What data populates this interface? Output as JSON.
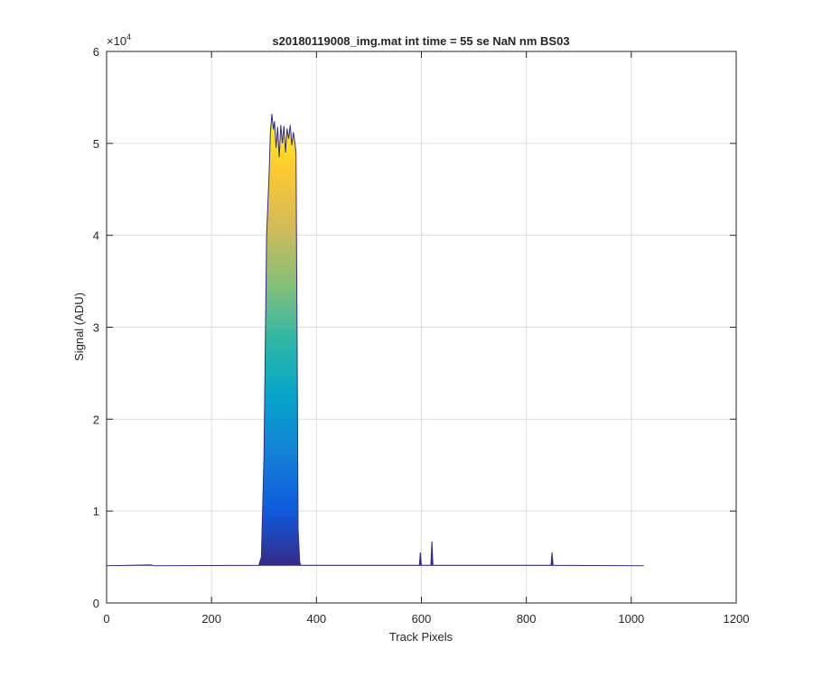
{
  "chart_data": {
    "type": "area",
    "title": "s20180119008_img.mat int time = 55 se  NaN nm BS03",
    "xlabel": "Track Pixels",
    "ylabel": "Signal (ADU)",
    "xlim": [
      0,
      1200
    ],
    "ylim": [
      0,
      60000
    ],
    "xticks": [
      0,
      200,
      400,
      600,
      800,
      1000,
      1200
    ],
    "yticks": [
      0,
      1,
      2,
      3,
      4,
      5,
      6
    ],
    "y_exponent_label": "×10",
    "y_exponent_power": "4",
    "grid": true,
    "colormap": "parula",
    "colormap_stops": [
      "#352a87",
      "#0f5cdd",
      "#1481d6",
      "#06a4ca",
      "#2eb7a4",
      "#87bf77",
      "#d1bb59",
      "#fec832",
      "#f9fb0e"
    ],
    "baseline": 4050,
    "x": [
      0,
      85,
      90,
      290,
      295,
      300,
      305,
      310,
      312,
      315,
      318,
      320,
      323,
      326,
      329,
      332,
      335,
      338,
      341,
      344,
      347,
      350,
      353,
      356,
      359,
      361,
      363,
      365,
      368,
      370,
      596,
      598,
      600,
      618,
      620,
      622,
      847,
      849,
      851,
      1024
    ],
    "y": [
      4050,
      4150,
      4050,
      4100,
      5000,
      16000,
      40000,
      47000,
      51000,
      53200,
      51500,
      52400,
      49500,
      51800,
      48500,
      52000,
      50000,
      51900,
      49000,
      51600,
      50500,
      52000,
      49800,
      51200,
      50000,
      49000,
      30000,
      8000,
      4500,
      4100,
      4100,
      5500,
      4100,
      4100,
      6700,
      4100,
      4100,
      5500,
      4100,
      4050
    ]
  }
}
